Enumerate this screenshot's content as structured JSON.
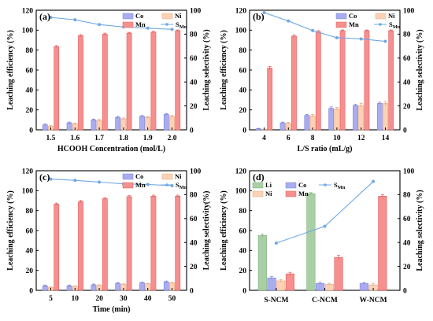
{
  "colors": {
    "Co": "#a9adf0",
    "Co_edge": "#7d82d8",
    "Ni": "#fcd2b5",
    "Ni_edge": "#e8a87e",
    "Mn": "#f78f8f",
    "Mn_edge": "#e06060",
    "Li": "#a9cfa6",
    "Li_edge": "#78b074",
    "S": "#6fa8e6"
  },
  "chart_data": [
    {
      "type": "bar",
      "panel_label": "(a)",
      "xlabel": "HCOOH Concentration (mol/L)",
      "ylabel": "Leaching efficiency (%)",
      "y2label": "Leaching selectivity (%)",
      "categories": [
        "1.5",
        "1.6",
        "1.7",
        "1.8",
        "1.9",
        "2.0"
      ],
      "ylim": [
        0,
        120
      ],
      "yticks": [
        0,
        20,
        40,
        60,
        80,
        100,
        120
      ],
      "y2lim": [
        0,
        100
      ],
      "y2ticks": [
        0,
        20,
        40,
        60,
        80,
        100
      ],
      "legend": [
        "Co",
        "Ni",
        "Mn",
        "S_Mn"
      ],
      "series": [
        {
          "name": "Co",
          "values": [
            5,
            7,
            10,
            12.5,
            13.5,
            15.5
          ],
          "errors": [
            0.8,
            0.8,
            0.8,
            0.9,
            0.8,
            0.9
          ]
        },
        {
          "name": "Ni",
          "values": [
            3.5,
            6,
            9.5,
            11,
            12.5,
            13.5
          ],
          "errors": [
            0.8,
            0.8,
            0.8,
            0.9,
            0.8,
            0.8
          ]
        },
        {
          "name": "Mn",
          "values": [
            83.5,
            94.5,
            96,
            97,
            98,
            99.5
          ],
          "errors": [
            1.0,
            1.0,
            1.0,
            0.8,
            0.8,
            0.7
          ]
        }
      ],
      "line": {
        "name": "S_Mn",
        "values": [
          94,
          92,
          88,
          86,
          85,
          84
        ]
      }
    },
    {
      "type": "bar",
      "panel_label": "(b)",
      "xlabel": "L/S ratio (mL/g)",
      "ylabel": "Leaching efficiency (%)",
      "y2label": "Leaching selectivity (%)",
      "categories": [
        "4",
        "6",
        "8",
        "10",
        "12",
        "14"
      ],
      "ylim": [
        0,
        120
      ],
      "yticks": [
        0,
        20,
        40,
        60,
        80,
        100,
        120
      ],
      "y2lim": [
        0,
        100
      ],
      "y2ticks": [
        0,
        20,
        40,
        60,
        80,
        100
      ],
      "legend": [
        "Co",
        "Ni",
        "Mn",
        "S_Mn"
      ],
      "series": [
        {
          "name": "Co",
          "values": [
            1,
            7,
            14.5,
            21.5,
            24.5,
            26.5
          ],
          "errors": [
            0.5,
            0.8,
            1.0,
            1.5,
            1.0,
            1.2
          ]
        },
        {
          "name": "Ni",
          "values": [
            0.3,
            6.5,
            14,
            21,
            24.5,
            26.5
          ],
          "errors": [
            0.3,
            0.8,
            1.5,
            1.5,
            2.0,
            2.0
          ]
        },
        {
          "name": "Mn",
          "values": [
            62,
            94,
            98.5,
            99.5,
            99.5,
            99.5
          ],
          "errors": [
            1.5,
            1.2,
            1.0,
            0.7,
            0.7,
            0.7
          ]
        }
      ],
      "line": {
        "name": "S_Mn",
        "values": [
          98,
          91,
          83,
          77,
          76,
          74
        ]
      }
    },
    {
      "type": "bar",
      "panel_label": "(c)",
      "xlabel": "Time (min)",
      "ylabel": "Leaching efficiency (%)",
      "y2label": "Leaching selectivity(%)",
      "categories": [
        "5",
        "10",
        "20",
        "30",
        "40",
        "50"
      ],
      "ylim": [
        0,
        120
      ],
      "yticks": [
        0,
        20,
        40,
        60,
        80,
        100,
        120
      ],
      "y2lim": [
        0,
        100
      ],
      "y2ticks": [
        0,
        20,
        40,
        60,
        80,
        100
      ],
      "legend": [
        "Co",
        "Ni",
        "Mn",
        "S_Mn"
      ],
      "series": [
        {
          "name": "Co",
          "values": [
            4.5,
            4.5,
            5.5,
            7,
            7.5,
            8.5
          ],
          "errors": [
            0.8,
            0.8,
            0.8,
            0.8,
            0.8,
            0.8
          ]
        },
        {
          "name": "Ni",
          "values": [
            3,
            4,
            5,
            6,
            6.5,
            7.5
          ],
          "errors": [
            0.5,
            0.5,
            0.5,
            0.5,
            0.5,
            0.5
          ]
        },
        {
          "name": "Mn",
          "values": [
            86.5,
            89,
            92,
            94,
            94.5,
            94.5
          ],
          "errors": [
            1.0,
            1.2,
            1.0,
            1.0,
            1.0,
            1.0
          ]
        }
      ],
      "line": {
        "name": "S_Mn",
        "values": [
          93,
          92,
          90.5,
          89,
          88.5,
          87.5
        ]
      }
    },
    {
      "type": "bar",
      "panel_label": "(d)",
      "xlabel": "",
      "ylabel": "Leaching efficiency (%)",
      "y2label": "Leaching selectivity (%)",
      "categories": [
        "S-NCM",
        "C-NCM",
        "W-NCM"
      ],
      "ylim": [
        0,
        120
      ],
      "yticks": [
        0,
        20,
        40,
        60,
        80,
        100,
        120
      ],
      "y2lim": [
        0,
        100
      ],
      "y2ticks": [
        0,
        20,
        40,
        60,
        80,
        100
      ],
      "legend": [
        "Li",
        "Co",
        "S_Mn",
        "Ni",
        "Mn"
      ],
      "series": [
        {
          "name": "Li",
          "values": [
            55,
            97,
            0
          ],
          "errors": [
            1.5,
            1.0,
            0
          ]
        },
        {
          "name": "Co",
          "values": [
            12.5,
            7,
            7
          ],
          "errors": [
            1.5,
            1.0,
            0.8
          ]
        },
        {
          "name": "Ni",
          "values": [
            9.5,
            6,
            5.5
          ],
          "errors": [
            1.5,
            1.0,
            1.5
          ]
        },
        {
          "name": "Mn",
          "values": [
            16.5,
            33,
            94.5
          ],
          "errors": [
            1.5,
            2.0,
            1.5
          ]
        }
      ],
      "line": {
        "name": "S_Mn",
        "values": [
          39.5,
          53.5,
          91
        ]
      }
    }
  ]
}
